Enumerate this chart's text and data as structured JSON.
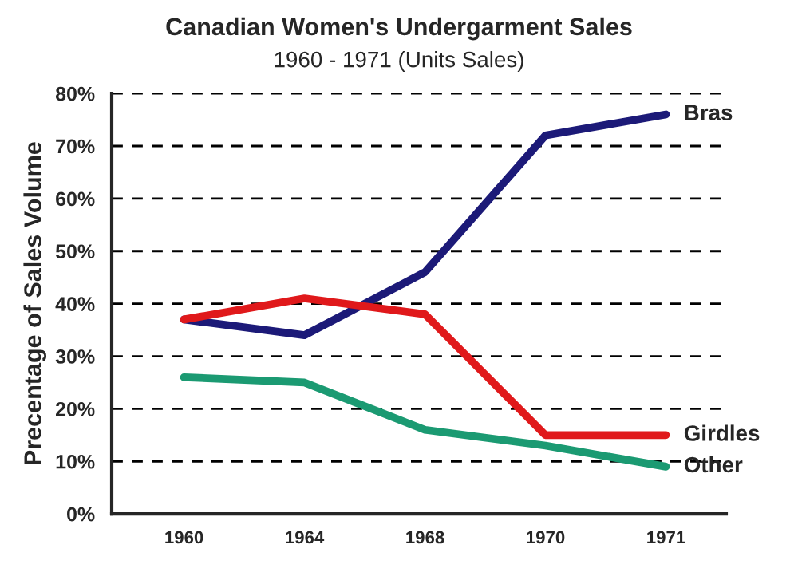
{
  "chart_data": {
    "type": "line",
    "title": "Canadian Women's Undergarment Sales",
    "subtitle": "1960 - 1971 (Units Sales)",
    "ylabel": "Precentage of Sales Volume",
    "categories": [
      "1960",
      "1964",
      "1968",
      "1970",
      "1971"
    ],
    "series": [
      {
        "name": "Bras",
        "color": "#1c1a78",
        "values": [
          37,
          34,
          46,
          72,
          76
        ]
      },
      {
        "name": "Girdles",
        "color": "#e0191b",
        "values": [
          37,
          41,
          38,
          15,
          15
        ]
      },
      {
        "name": "Other",
        "color": "#1b9a72",
        "values": [
          26,
          25,
          16,
          13,
          9
        ]
      }
    ],
    "ylim": [
      0,
      80
    ],
    "yticks": [
      {
        "value": 0,
        "label": "0%"
      },
      {
        "value": 10,
        "label": "10%"
      },
      {
        "value": 20,
        "label": "20%"
      },
      {
        "value": 30,
        "label": "30%"
      },
      {
        "value": 40,
        "label": "40%"
      },
      {
        "value": 50,
        "label": "50%"
      },
      {
        "value": 60,
        "label": "60%"
      },
      {
        "value": 70,
        "label": "70%"
      },
      {
        "value": 80,
        "label": "80%"
      }
    ],
    "grid": "y",
    "legend": false,
    "marker": "none",
    "line_style": "solid"
  }
}
